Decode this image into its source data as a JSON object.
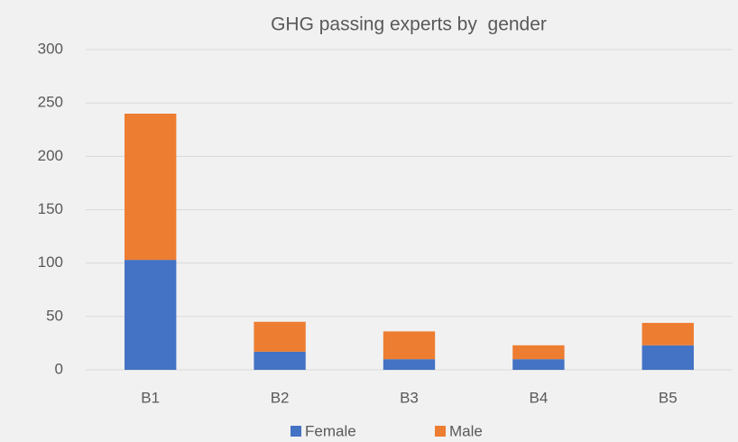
{
  "chart_data": {
    "type": "stacked_bar",
    "title": "GHG passing experts by  gender",
    "categories": [
      "B1",
      "B2",
      "B3",
      "B4",
      "B5"
    ],
    "series": [
      {
        "name": "Female",
        "color": "#4472c4",
        "values": [
          103,
          17,
          10,
          10,
          23
        ]
      },
      {
        "name": "Male",
        "color": "#ed7d31",
        "values": [
          137,
          28,
          26,
          13,
          21
        ]
      }
    ],
    "ylim": [
      0,
      300
    ],
    "yticks": [
      0,
      50,
      100,
      150,
      200,
      250,
      300
    ],
    "grid": true,
    "legend": "bottom"
  }
}
